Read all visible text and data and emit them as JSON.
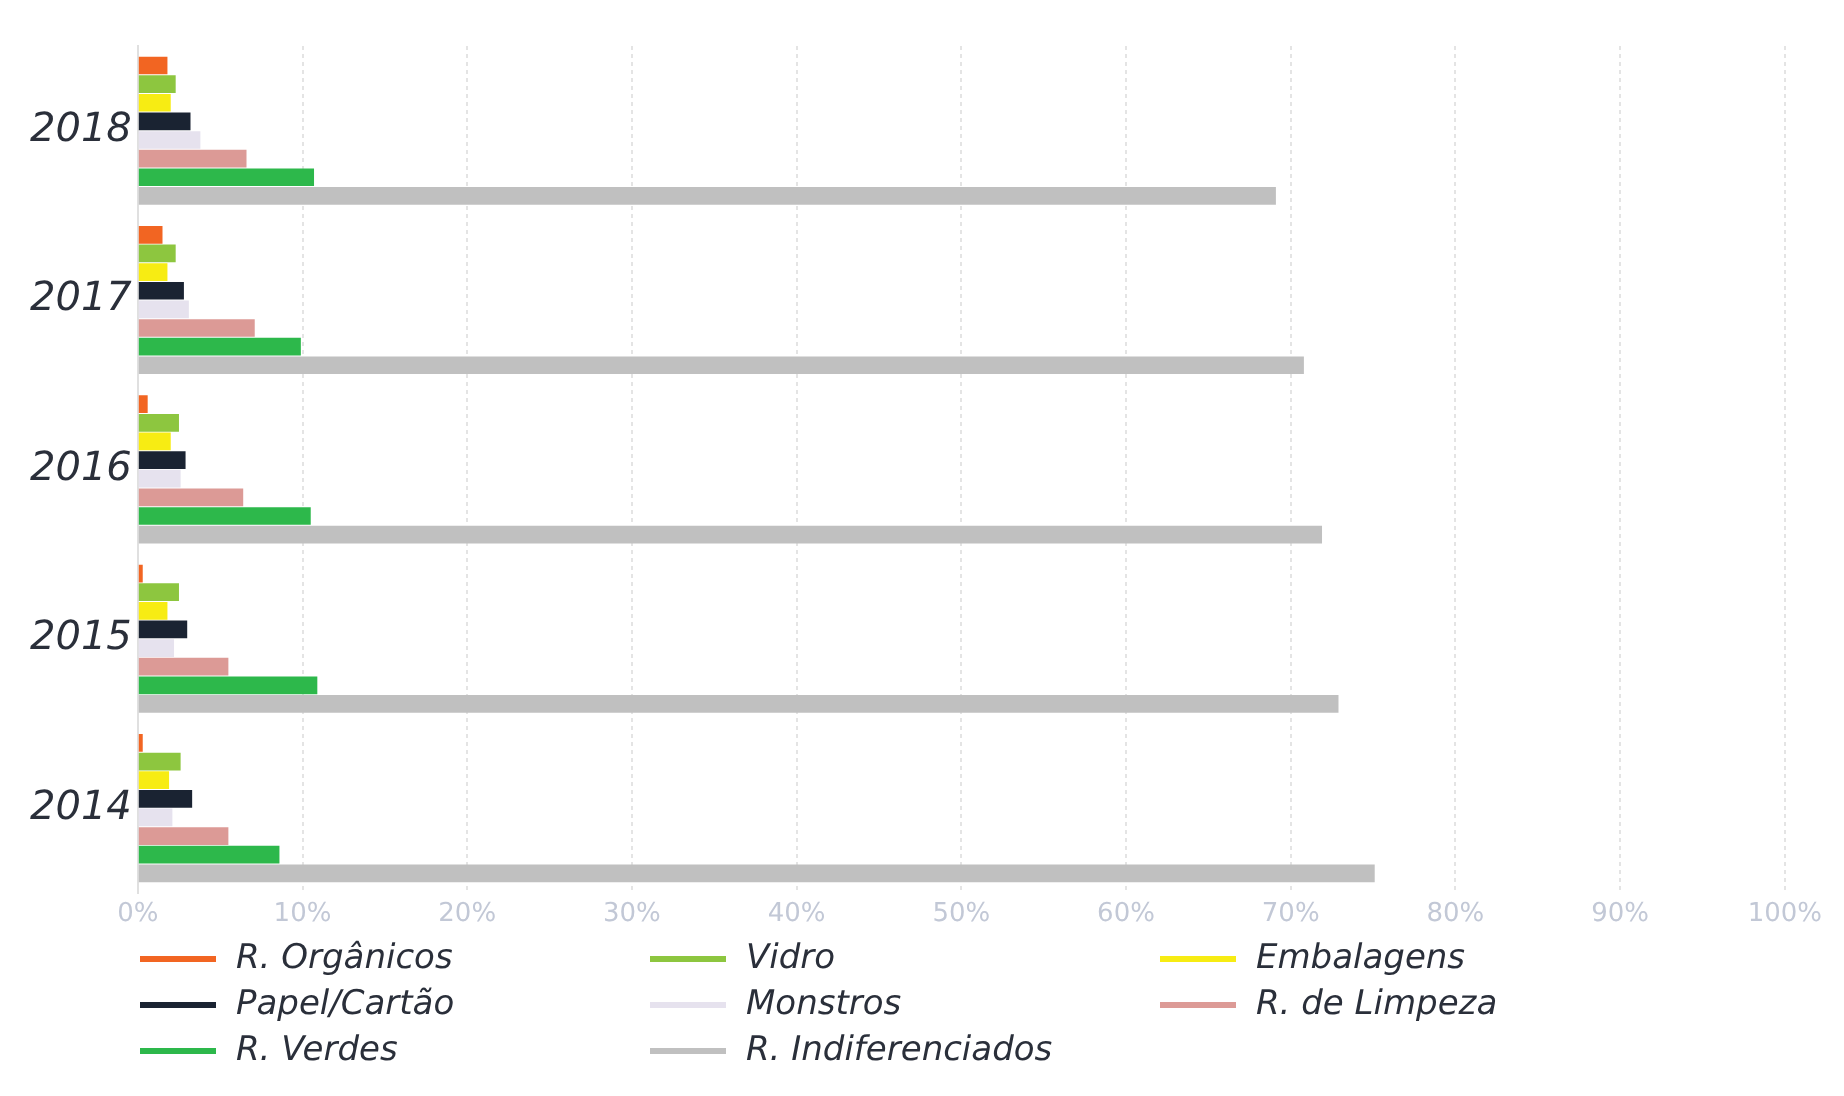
{
  "chart_data": {
    "type": "bar",
    "orientation": "horizontal",
    "categories": [
      "2018",
      "2017",
      "2016",
      "2015",
      "2014"
    ],
    "xlim": [
      0,
      100
    ],
    "xticks": [
      {
        "value": 0,
        "label": "0%"
      },
      {
        "value": 10,
        "label": "10%"
      },
      {
        "value": 20,
        "label": "20%"
      },
      {
        "value": 30,
        "label": "30%"
      },
      {
        "value": 40,
        "label": "40%"
      },
      {
        "value": 50,
        "label": "50%"
      },
      {
        "value": 60,
        "label": "60%"
      },
      {
        "value": 70,
        "label": "70%"
      },
      {
        "value": 80,
        "label": "80%"
      },
      {
        "value": 90,
        "label": "90%"
      },
      {
        "value": 100,
        "label": "100%"
      }
    ],
    "grid": "x",
    "legend": "bottom",
    "series": [
      {
        "name": "R. Orgânicos",
        "color": "#f26522",
        "values": [
          1.8,
          1.5,
          0.6,
          0.3,
          0.3
        ]
      },
      {
        "name": "Vidro",
        "color": "#8dc63f",
        "values": [
          2.3,
          2.3,
          2.5,
          2.5,
          2.6
        ]
      },
      {
        "name": "Embalagens",
        "color": "#f7ec13",
        "values": [
          2.0,
          1.8,
          2.0,
          1.8,
          1.9
        ]
      },
      {
        "name": "Papel/Cartão",
        "color": "#1a2332",
        "values": [
          3.2,
          2.8,
          2.9,
          3.0,
          3.3
        ]
      },
      {
        "name": "Monstros",
        "color": "#e6e2ee",
        "values": [
          3.8,
          3.1,
          2.6,
          2.2,
          2.1
        ]
      },
      {
        "name": "R. de Limpeza",
        "color": "#dc9a96",
        "values": [
          6.6,
          7.1,
          6.4,
          5.5,
          5.5
        ]
      },
      {
        "name": "R. Verdes",
        "color": "#2db84b",
        "values": [
          10.7,
          9.9,
          10.5,
          10.9,
          8.6
        ]
      },
      {
        "name": "R. Indiferenciados",
        "color": "#c0c0c0",
        "values": [
          69.1,
          70.8,
          71.9,
          72.9,
          75.1
        ]
      }
    ]
  }
}
